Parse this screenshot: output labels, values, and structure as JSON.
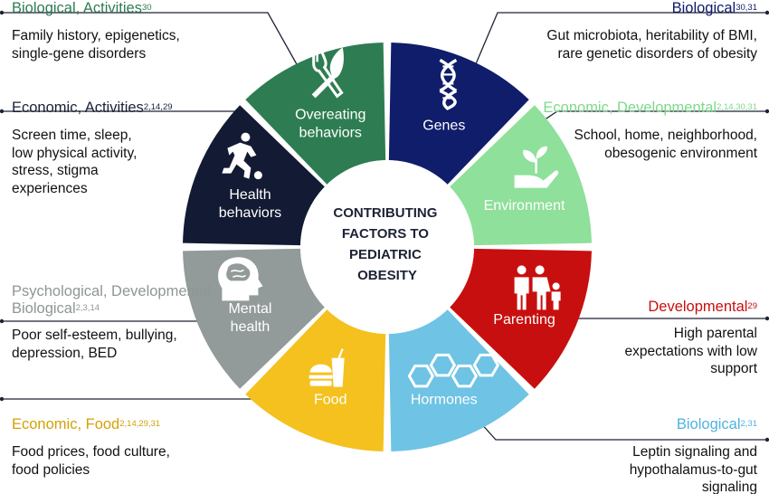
{
  "center": {
    "lines": [
      "CONTRIBUTING",
      "FACTORS TO",
      "PEDIATRIC",
      "OBESITY"
    ]
  },
  "segments": [
    {
      "id": "genes",
      "label_lines": [
        "Genes"
      ],
      "color": "#0f1d6b",
      "icon": "dna-icon"
    },
    {
      "id": "environment",
      "label_lines": [
        "Environment"
      ],
      "color": "#8fe09a",
      "icon": "hand-sprout-icon"
    },
    {
      "id": "parenting",
      "label_lines": [
        "Parenting"
      ],
      "color": "#c80f0f",
      "icon": "family-icon"
    },
    {
      "id": "hormones",
      "label_lines": [
        "Hormones"
      ],
      "color": "#6fc3e4",
      "icon": "hexagon-molecule-icon"
    },
    {
      "id": "food",
      "label_lines": [
        "Food"
      ],
      "color": "#f4c11e",
      "icon": "fast-food-icon"
    },
    {
      "id": "mental-health",
      "label_lines": [
        "Mental",
        "health"
      ],
      "color": "#939a9a",
      "icon": "brain-head-icon"
    },
    {
      "id": "health-behaviors",
      "label_lines": [
        "Health",
        "behaviors"
      ],
      "color": "#131a33",
      "icon": "soccer-player-icon"
    },
    {
      "id": "overeating",
      "label_lines": [
        "Overeating",
        "behaviors"
      ],
      "color": "#2e7d52",
      "icon": "fork-knife-icon"
    }
  ],
  "side_notes": [
    {
      "id": "biological-genes",
      "side": "right",
      "color": "#0f1d6b",
      "heading_lines": [
        "Biological"
      ],
      "refs": "30,31",
      "lines": [
        "Gut microbiota, heritability of BMI,",
        "rare genetic disorders of obesity"
      ]
    },
    {
      "id": "economic-developmental-env",
      "side": "right",
      "color": "#7ed98a",
      "heading_lines": [
        "Economic, Developmental"
      ],
      "refs": "2,14,30,31",
      "lines": [
        "School, home, neighborhood,",
        "obesogenic environment"
      ]
    },
    {
      "id": "developmental-parenting",
      "side": "right",
      "color": "#c80f0f",
      "heading_lines": [
        "Developmental"
      ],
      "refs": "29",
      "lines": [
        "High parental",
        "expectations with low",
        "support"
      ]
    },
    {
      "id": "biological-hormones",
      "side": "right",
      "color": "#4fb3df",
      "heading_lines": [
        "Biological"
      ],
      "refs": "2,31",
      "lines": [
        "Leptin signaling and",
        "hypothalamus-to-gut",
        "signaling"
      ]
    },
    {
      "id": "economic-food",
      "side": "left",
      "color": "#d4a106",
      "heading_lines": [
        "Economic, Food"
      ],
      "refs": "2,14,29,31",
      "lines": [
        "Food prices, food culture,",
        "food policies"
      ]
    },
    {
      "id": "psych-mental",
      "side": "left",
      "color": "#8f9696",
      "heading_lines": [
        "Psychological, Developmental,",
        "Biological"
      ],
      "refs": "2,3,14",
      "lines": [
        "Poor self-esteem, bullying,",
        "depression, BED"
      ]
    },
    {
      "id": "economic-activities",
      "side": "left",
      "color": "#1b2036",
      "heading_lines": [
        "Economic, Activities"
      ],
      "refs": "2,14,29",
      "lines": [
        "Screen time, sleep,",
        "low physical activity,",
        "stress, stigma",
        "experiences"
      ]
    },
    {
      "id": "biological-activities",
      "side": "left",
      "color": "#2e7d52",
      "heading_lines": [
        "Biological, Activities"
      ],
      "refs": "30",
      "lines": [
        "Family history, epigenetics,",
        "single-gene disorders"
      ]
    }
  ]
}
